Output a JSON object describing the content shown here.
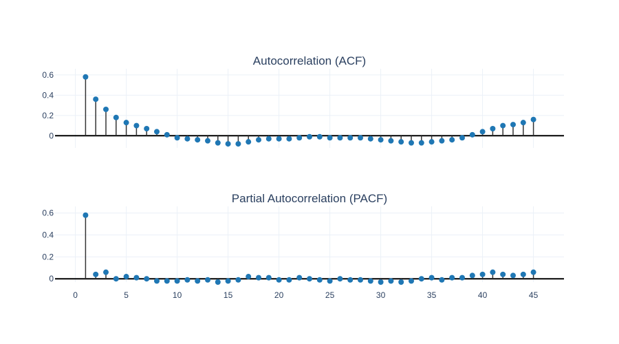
{
  "colors": {
    "marker": "#1f77b4",
    "stem": "#333333",
    "text": "#2a3f5f",
    "grid": "#ebf0f8",
    "zero_line": "#000000"
  },
  "chart_data": [
    {
      "type": "scatter",
      "title": "Autocorrelation (ACF)",
      "xlabel": "",
      "ylabel": "",
      "xlim": [
        -2,
        48
      ],
      "ylim": [
        -0.12,
        0.66
      ],
      "yticks": [
        0,
        0.2,
        0.4,
        0.6
      ],
      "ytick_labels": [
        "0",
        "0.2",
        "0.4",
        "0.6"
      ],
      "xticks": [],
      "xtick_labels": [],
      "grid": true,
      "x": [
        1,
        2,
        3,
        4,
        5,
        6,
        7,
        8,
        9,
        10,
        11,
        12,
        13,
        14,
        15,
        16,
        17,
        18,
        19,
        20,
        21,
        22,
        23,
        24,
        25,
        26,
        27,
        28,
        29,
        30,
        31,
        32,
        33,
        34,
        35,
        36,
        37,
        38,
        39,
        40,
        41,
        42,
        43,
        44,
        45
      ],
      "values": [
        0.58,
        0.36,
        0.26,
        0.18,
        0.13,
        0.1,
        0.07,
        0.04,
        0.01,
        -0.02,
        -0.03,
        -0.04,
        -0.05,
        -0.07,
        -0.08,
        -0.08,
        -0.06,
        -0.04,
        -0.03,
        -0.03,
        -0.03,
        -0.02,
        -0.01,
        -0.01,
        -0.02,
        -0.02,
        -0.02,
        -0.02,
        -0.03,
        -0.04,
        -0.05,
        -0.06,
        -0.07,
        -0.07,
        -0.06,
        -0.05,
        -0.04,
        -0.02,
        0.01,
        0.04,
        0.07,
        0.1,
        0.11,
        0.13,
        0.16
      ]
    },
    {
      "type": "scatter",
      "title": "Partial Autocorrelation (PACF)",
      "xlabel": "",
      "ylabel": "",
      "xlim": [
        -2,
        48
      ],
      "ylim": [
        -0.03,
        0.66
      ],
      "yticks": [
        0,
        0.2,
        0.4,
        0.6
      ],
      "ytick_labels": [
        "0",
        "0.2",
        "0.4",
        "0.6"
      ],
      "xticks": [
        0,
        5,
        10,
        15,
        20,
        25,
        30,
        35,
        40,
        45
      ],
      "xtick_labels": [
        "0",
        "5",
        "10",
        "15",
        "20",
        "25",
        "30",
        "35",
        "40",
        "45"
      ],
      "grid": true,
      "x": [
        1,
        2,
        3,
        4,
        5,
        6,
        7,
        8,
        9,
        10,
        11,
        12,
        13,
        14,
        15,
        16,
        17,
        18,
        19,
        20,
        21,
        22,
        23,
        24,
        25,
        26,
        27,
        28,
        29,
        30,
        31,
        32,
        33,
        34,
        35,
        36,
        37,
        38,
        39,
        40,
        41,
        42,
        43,
        44,
        45
      ],
      "values": [
        0.58,
        0.04,
        0.06,
        0.0,
        0.02,
        0.01,
        0.0,
        -0.02,
        -0.02,
        -0.02,
        -0.01,
        -0.02,
        -0.01,
        -0.03,
        -0.02,
        -0.01,
        0.02,
        0.01,
        0.01,
        -0.01,
        -0.01,
        0.01,
        0.0,
        -0.01,
        -0.02,
        0.0,
        -0.01,
        -0.01,
        -0.02,
        -0.03,
        -0.02,
        -0.03,
        -0.02,
        0.0,
        0.01,
        -0.01,
        0.01,
        0.01,
        0.03,
        0.04,
        0.06,
        0.04,
        0.03,
        0.04,
        0.06
      ]
    }
  ]
}
